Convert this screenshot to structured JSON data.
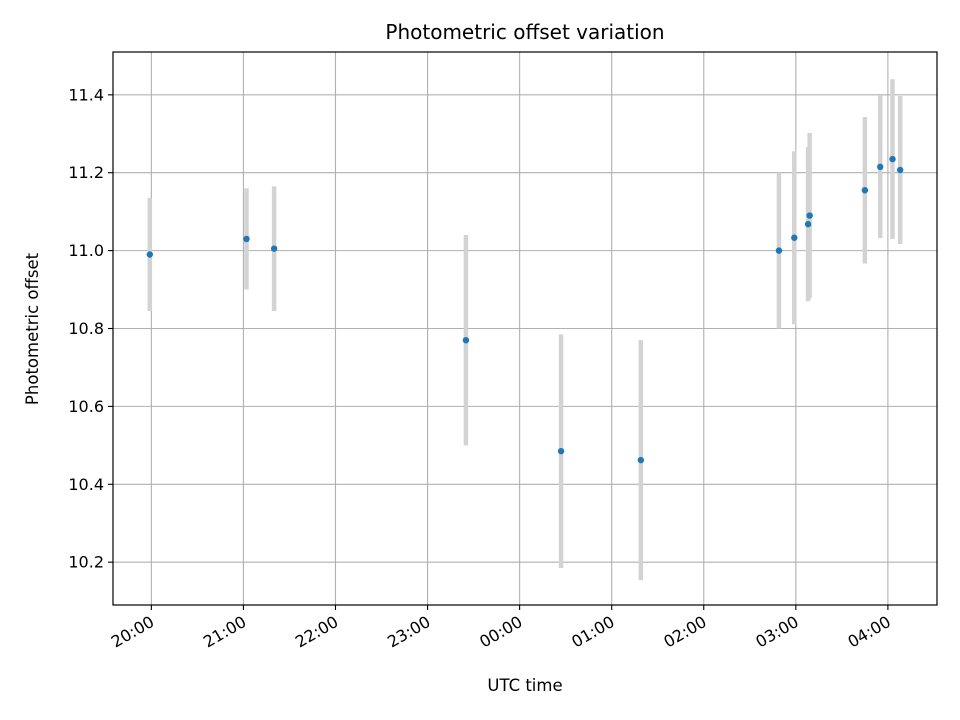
{
  "chart_data": {
    "type": "scatter",
    "title": "Photometric offset variation",
    "xlabel": "UTC time",
    "ylabel": "Photometric offset",
    "x_unit": "hours since 20:00 UTC on x-axis (hh:mm ticks)",
    "x_ticks": [
      "20:00",
      "21:00",
      "22:00",
      "23:00",
      "00:00",
      "01:00",
      "02:00",
      "03:00",
      "04:00"
    ],
    "y_ticks": [
      "10.2",
      "10.4",
      "10.6",
      "10.8",
      "11.0",
      "11.2",
      "11.4"
    ],
    "xlim": [
      "19:35",
      "04:32"
    ],
    "ylim": [
      10.09,
      11.51
    ],
    "grid": true,
    "point_color": "#1f77b4",
    "errorbar_color": "#d3d3d3",
    "points": [
      {
        "time": "19:59",
        "y": 10.99,
        "err": 0.145
      },
      {
        "time": "21:02",
        "y": 11.03,
        "err": 0.13
      },
      {
        "time": "21:20",
        "y": 11.005,
        "err": 0.16
      },
      {
        "time": "23:25",
        "y": 10.77,
        "err": 0.27
      },
      {
        "time": "00:27",
        "y": 10.485,
        "err": 0.3
      },
      {
        "time": "01:19",
        "y": 10.462,
        "err": 0.308
      },
      {
        "time": "02:49",
        "y": 11.0,
        "err": 0.2
      },
      {
        "time": "02:59",
        "y": 11.033,
        "err": 0.222
      },
      {
        "time": "03:08",
        "y": 11.068,
        "err": 0.198
      },
      {
        "time": "03:09",
        "y": 11.09,
        "err": 0.212
      },
      {
        "time": "03:45",
        "y": 11.155,
        "err": 0.188
      },
      {
        "time": "03:55",
        "y": 11.215,
        "err": 0.183
      },
      {
        "time": "04:03",
        "y": 11.235,
        "err": 0.205
      },
      {
        "time": "04:08",
        "y": 11.207,
        "err": 0.19
      }
    ]
  }
}
